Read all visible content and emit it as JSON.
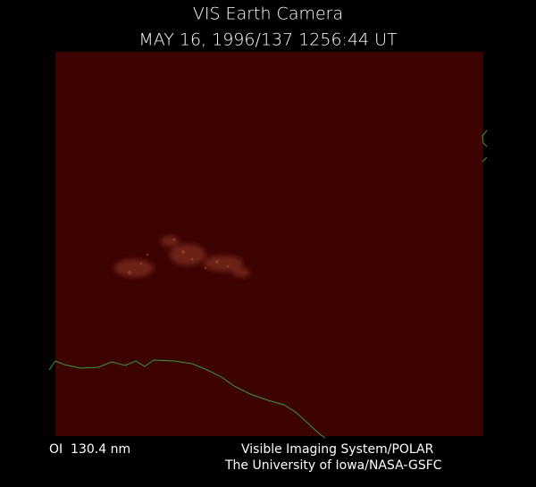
{
  "header": {
    "title": "VIS Earth Camera",
    "subtitle": "MAY 16, 1996/137 1256:44 UT"
  },
  "footer": {
    "wavelength": "OI  130.4 nm",
    "instrument": "Visible Imaging System/POLAR",
    "credit": "The University of Iowa/NASA-GSFC"
  }
}
